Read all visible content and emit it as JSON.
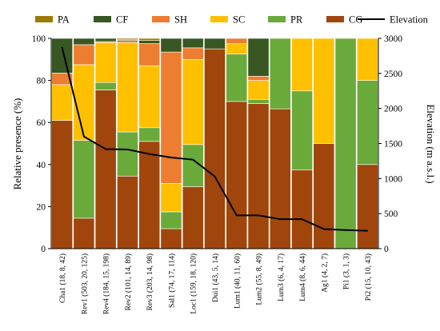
{
  "chart_data": {
    "type": "bar",
    "stacked": true,
    "categories": [
      "Cha1 (18, 8, 42)",
      "Rev1 (503, 20, 125)",
      "Rev4 (184, 15, 198)",
      "Rev2 (101, 14, 89)",
      "Rev3 (203, 14, 98)",
      "Sal1 (74, 17, 114)",
      "Loc1 (159, 18, 120)",
      "Dui1 (43, 5, 14)",
      "Lum1 (40, 11, 60)",
      "Lum2 (55, 8, 49)",
      "Lum3 (6, 4, 17)",
      "Lum4 (8, 6, 44)",
      "Ag1 (4, 2, 7)",
      "Pi1 (3, 1, 3)",
      "Pi2 (15, 10, 43)"
    ],
    "series": [
      {
        "name": "CG",
        "color": "#a0460c",
        "values": [
          61,
          14.5,
          75.5,
          34.5,
          51,
          9.5,
          29.5,
          95,
          70,
          69,
          66.5,
          37.5,
          50,
          0,
          40
        ]
      },
      {
        "name": "PR",
        "color": "#6aaa3a",
        "values": [
          0,
          37,
          3.5,
          21,
          6.5,
          8,
          20,
          0,
          22.5,
          2,
          33.5,
          37.5,
          0,
          100,
          40
        ]
      },
      {
        "name": "SC",
        "color": "#ffc000",
        "values": [
          17,
          36,
          19,
          42.5,
          29.5,
          13.5,
          40.5,
          0,
          5,
          9,
          0,
          25,
          50,
          0,
          20
        ]
      },
      {
        "name": "SH",
        "color": "#ed7d31",
        "values": [
          5.5,
          9.5,
          0.5,
          1,
          10.5,
          62.5,
          5.5,
          0,
          2.5,
          2,
          0,
          0,
          0,
          0,
          0
        ]
      },
      {
        "name": "CF",
        "color": "#385723",
        "values": [
          16.5,
          3,
          1.5,
          0.5,
          1.5,
          6.5,
          4.5,
          5,
          0,
          18,
          0,
          0,
          0,
          0,
          0
        ]
      },
      {
        "name": "PA",
        "color": "#9c7a06",
        "values": [
          0,
          0,
          0,
          0.5,
          1,
          0,
          0,
          0,
          0,
          0,
          0,
          0,
          0,
          0,
          0
        ]
      }
    ],
    "elevation": {
      "name": "Elevation",
      "color": "#000000",
      "values": [
        2870,
        1600,
        1420,
        1415,
        1350,
        1300,
        1270,
        1030,
        475,
        475,
        420,
        420,
        280,
        265,
        255
      ]
    },
    "ylabel": "Relative presence (%)",
    "y2label": "Elevation (m a.s.l.)",
    "ylim": [
      0,
      100
    ],
    "y2lim": [
      0,
      3000
    ],
    "yticks": [
      "0",
      "20",
      "40",
      "60",
      "80",
      "100"
    ],
    "y2ticks": [
      "0",
      "500",
      "1000",
      "1500",
      "2000",
      "2500",
      "3000"
    ],
    "legend": [
      "PA",
      "CF",
      "SH",
      "SC",
      "PR",
      "CG",
      "Elevation"
    ],
    "legend_position": "top",
    "grid": false
  }
}
